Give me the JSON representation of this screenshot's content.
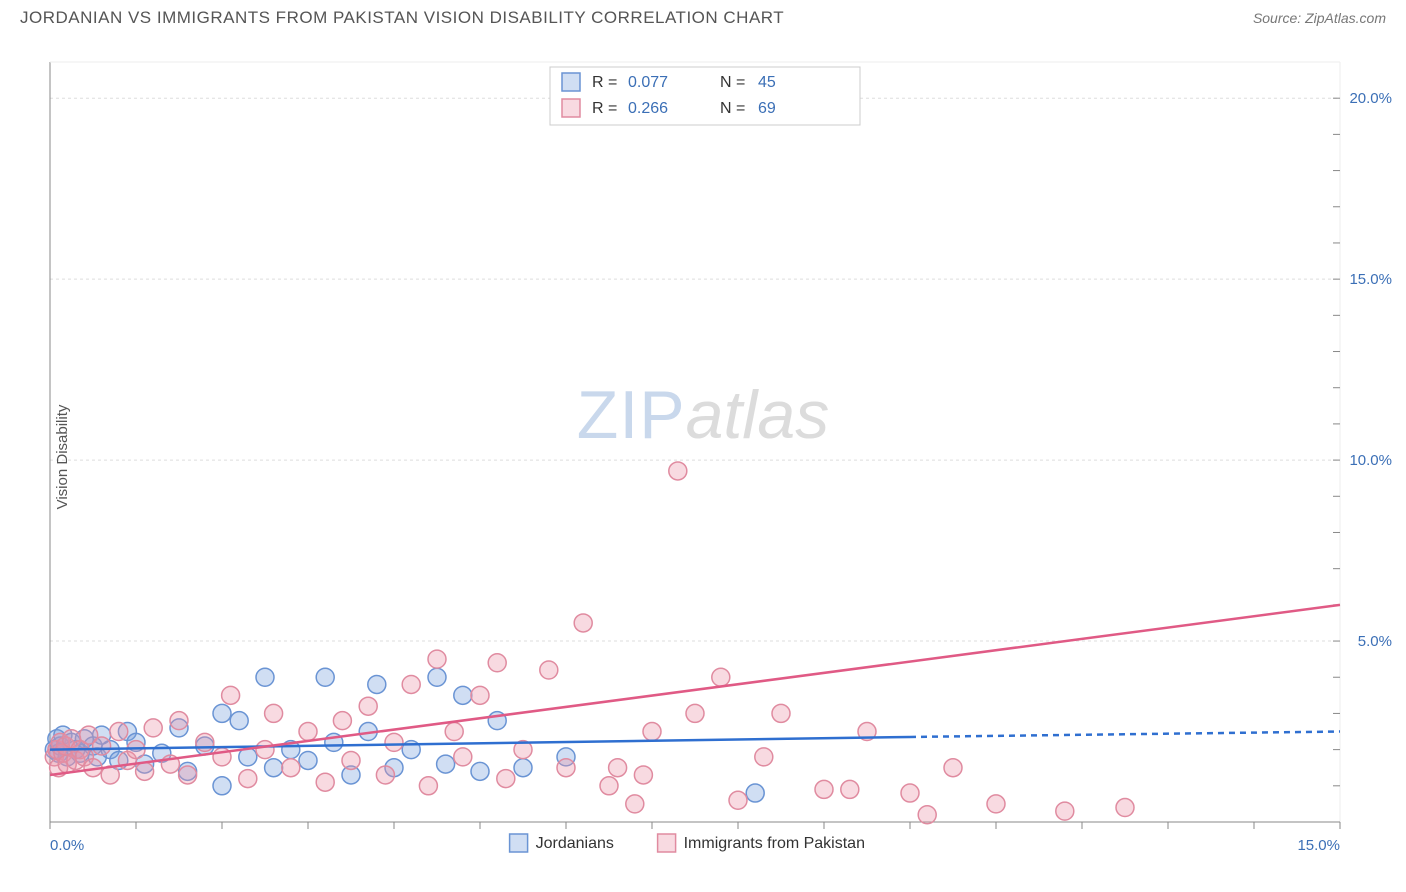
{
  "title": "JORDANIAN VS IMMIGRANTS FROM PAKISTAN VISION DISABILITY CORRELATION CHART",
  "source": "Source: ZipAtlas.com",
  "ylabel": "Vision Disability",
  "watermark": {
    "zip": "ZIP",
    "atlas": "atlas"
  },
  "chart": {
    "type": "scatter",
    "xlim": [
      0,
      15
    ],
    "ylim": [
      0,
      21
    ],
    "xtick_labels": {
      "0": "0.0%",
      "15": "15.0%"
    },
    "ytick_labels": {
      "5": "5.0%",
      "10": "10.0%",
      "15": "15.0%",
      "20": "20.0%"
    },
    "grid_color": "#dddddd",
    "axis_color": "#888888",
    "tick_label_color": "#3b6fb6",
    "marker_radius": 9,
    "marker_stroke_width": 1.5,
    "line_width": 2.5,
    "series": [
      {
        "label": "Jordanians",
        "fill": "rgba(120,160,220,0.35)",
        "stroke": "#6a94d4",
        "line_stroke": "#2f6fd0",
        "trend": {
          "x1": 0,
          "y1": 2.0,
          "x2": 10,
          "y2": 2.35,
          "solid_end_x": 10,
          "dash_end_x": 15,
          "dash_y2": 2.5
        },
        "points": [
          [
            0.05,
            2.0
          ],
          [
            0.08,
            2.3
          ],
          [
            0.1,
            1.9
          ],
          [
            0.12,
            2.1
          ],
          [
            0.15,
            2.4
          ],
          [
            0.2,
            1.8
          ],
          [
            0.25,
            2.2
          ],
          [
            0.3,
            2.0
          ],
          [
            0.35,
            1.9
          ],
          [
            0.4,
            2.3
          ],
          [
            0.5,
            2.1
          ],
          [
            0.55,
            1.8
          ],
          [
            0.6,
            2.4
          ],
          [
            0.7,
            2.0
          ],
          [
            0.8,
            1.7
          ],
          [
            0.9,
            2.5
          ],
          [
            1.0,
            2.2
          ],
          [
            1.1,
            1.6
          ],
          [
            1.3,
            1.9
          ],
          [
            1.5,
            2.6
          ],
          [
            1.6,
            1.4
          ],
          [
            1.8,
            2.1
          ],
          [
            2.0,
            3.0
          ],
          [
            2.0,
            1.0
          ],
          [
            2.2,
            2.8
          ],
          [
            2.3,
            1.8
          ],
          [
            2.5,
            4.0
          ],
          [
            2.6,
            1.5
          ],
          [
            2.8,
            2.0
          ],
          [
            3.0,
            1.7
          ],
          [
            3.2,
            4.0
          ],
          [
            3.3,
            2.2
          ],
          [
            3.5,
            1.3
          ],
          [
            3.7,
            2.5
          ],
          [
            3.8,
            3.8
          ],
          [
            4.0,
            1.5
          ],
          [
            4.2,
            2.0
          ],
          [
            4.5,
            4.0
          ],
          [
            4.6,
            1.6
          ],
          [
            4.8,
            3.5
          ],
          [
            5.0,
            1.4
          ],
          [
            5.2,
            2.8
          ],
          [
            5.5,
            1.5
          ],
          [
            6.0,
            1.8
          ],
          [
            8.2,
            0.8
          ]
        ]
      },
      {
        "label": "Immigants from Pakistan",
        "fill": "rgba(235,150,170,0.35)",
        "stroke": "#e08ba0",
        "line_stroke": "#e05a85",
        "trend": {
          "x1": 0,
          "y1": 1.3,
          "x2": 15,
          "y2": 6.0
        },
        "points": [
          [
            0.05,
            1.8
          ],
          [
            0.08,
            2.0
          ],
          [
            0.1,
            1.5
          ],
          [
            0.12,
            2.2
          ],
          [
            0.15,
            1.9
          ],
          [
            0.18,
            2.1
          ],
          [
            0.2,
            1.6
          ],
          [
            0.25,
            2.3
          ],
          [
            0.3,
            1.7
          ],
          [
            0.35,
            2.0
          ],
          [
            0.4,
            1.8
          ],
          [
            0.45,
            2.4
          ],
          [
            0.5,
            1.5
          ],
          [
            0.6,
            2.1
          ],
          [
            0.7,
            1.3
          ],
          [
            0.8,
            2.5
          ],
          [
            0.9,
            1.7
          ],
          [
            1.0,
            2.0
          ],
          [
            1.1,
            1.4
          ],
          [
            1.2,
            2.6
          ],
          [
            1.4,
            1.6
          ],
          [
            1.5,
            2.8
          ],
          [
            1.6,
            1.3
          ],
          [
            1.8,
            2.2
          ],
          [
            2.0,
            1.8
          ],
          [
            2.1,
            3.5
          ],
          [
            2.3,
            1.2
          ],
          [
            2.5,
            2.0
          ],
          [
            2.6,
            3.0
          ],
          [
            2.8,
            1.5
          ],
          [
            3.0,
            2.5
          ],
          [
            3.2,
            1.1
          ],
          [
            3.4,
            2.8
          ],
          [
            3.5,
            1.7
          ],
          [
            3.7,
            3.2
          ],
          [
            3.9,
            1.3
          ],
          [
            4.0,
            2.2
          ],
          [
            4.2,
            3.8
          ],
          [
            4.4,
            1.0
          ],
          [
            4.5,
            4.5
          ],
          [
            4.7,
            2.5
          ],
          [
            4.8,
            1.8
          ],
          [
            5.0,
            3.5
          ],
          [
            5.2,
            4.4
          ],
          [
            5.3,
            1.2
          ],
          [
            5.5,
            2.0
          ],
          [
            5.8,
            4.2
          ],
          [
            6.0,
            1.5
          ],
          [
            6.2,
            5.5
          ],
          [
            6.5,
            1.0
          ],
          [
            6.6,
            1.5
          ],
          [
            6.8,
            0.5
          ],
          [
            6.9,
            1.3
          ],
          [
            7.0,
            2.5
          ],
          [
            7.3,
            9.7
          ],
          [
            7.5,
            3.0
          ],
          [
            7.8,
            4.0
          ],
          [
            8.0,
            0.6
          ],
          [
            8.3,
            1.8
          ],
          [
            8.5,
            3.0
          ],
          [
            9.0,
            0.9
          ],
          [
            9.3,
            0.9
          ],
          [
            9.5,
            2.5
          ],
          [
            10.0,
            0.8
          ],
          [
            10.2,
            0.2
          ],
          [
            10.5,
            1.5
          ],
          [
            11.0,
            0.5
          ],
          [
            11.8,
            0.3
          ],
          [
            12.5,
            0.4
          ]
        ]
      }
    ],
    "stats_box": {
      "border": "#cccccc",
      "rows": [
        {
          "swatch": 0,
          "R_label": "R =",
          "R": "0.077",
          "N_label": "N =",
          "N": "45"
        },
        {
          "swatch": 1,
          "R_label": "R =",
          "R": "0.266",
          "N_label": "N =",
          "N": "69"
        }
      ]
    },
    "legend": {
      "items": [
        {
          "swatch": 0,
          "label": "Jordanians"
        },
        {
          "swatch": 1,
          "label": "Immigrants from Pakistan"
        }
      ]
    }
  }
}
